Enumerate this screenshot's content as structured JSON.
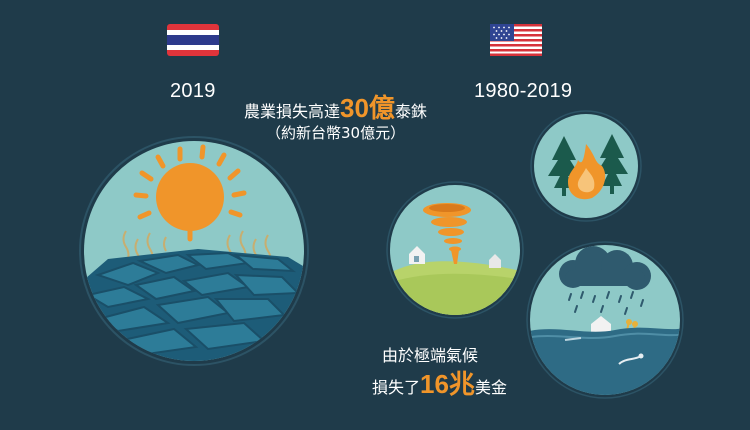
{
  "thailand": {
    "flag_icon": "thailand-flag-icon",
    "year": "2019",
    "loss_prefix": "農業損失高達",
    "loss_value": "30億",
    "loss_suffix": "泰銖",
    "loss_note": "（約新台幣30億元）"
  },
  "usa": {
    "flag_icon": "usa-flag-icon",
    "year": "1980-2019",
    "line1": "由於極端氣候",
    "loss_prefix": "損失了",
    "loss_value": "16兆",
    "loss_suffix": "美金"
  },
  "colors": {
    "background": "#1f3b4a",
    "circle": "#8ec9c7",
    "accent": "#f0952a",
    "water": "#2e6b85"
  },
  "icons": [
    "drought-sun-icon",
    "wildfire-icon",
    "tornado-icon",
    "flood-icon"
  ]
}
